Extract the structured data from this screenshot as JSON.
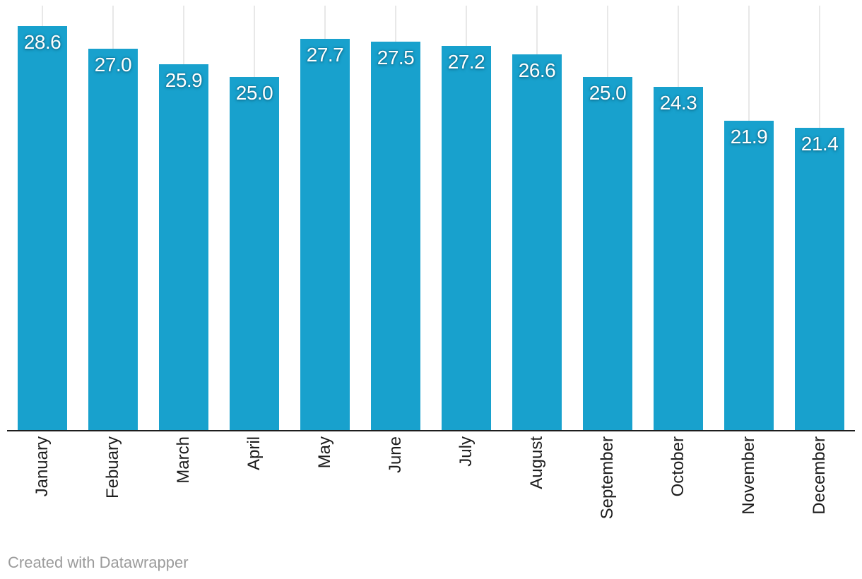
{
  "chart_data": {
    "type": "bar",
    "categories": [
      "January",
      "Febuary",
      "March",
      "April",
      "May",
      "June",
      "July",
      "August",
      "September",
      "October",
      "November",
      "December"
    ],
    "values": [
      28.6,
      27.0,
      25.9,
      25.0,
      27.7,
      27.5,
      27.2,
      26.6,
      25.0,
      24.3,
      21.9,
      21.4
    ],
    "value_labels": [
      "28.6",
      "27.0",
      "25.9",
      "25.0",
      "27.7",
      "27.5",
      "27.2",
      "26.6",
      "25.0",
      "24.3",
      "21.9",
      "21.4"
    ],
    "title": "",
    "xlabel": "",
    "ylabel": "",
    "ylim": [
      0,
      30
    ],
    "grid": "vertical-per-category",
    "legend": "none",
    "bar_color": "#18a1cd",
    "value_label_color": "#ffffff",
    "axis_line_color": "#1d1d1d",
    "gridline_color": "#e8e8e8",
    "category_label_rotation_deg": -90
  },
  "footer": {
    "attribution": "Created with Datawrapper"
  }
}
